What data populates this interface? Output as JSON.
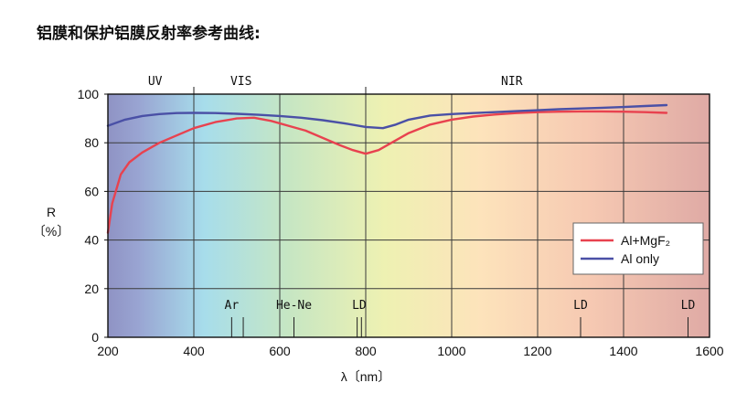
{
  "title": "铝膜和保护铝膜反射率参考曲线:",
  "chart_data": {
    "type": "line",
    "title": "铝膜和保护铝膜反射率参考曲线:",
    "xlabel": "λ〔nm〕",
    "ylabel_line1": "R",
    "ylabel_line2": "〔%〕",
    "xlim": [
      200,
      1600
    ],
    "ylim": [
      0,
      100
    ],
    "xticks": [
      200,
      400,
      600,
      800,
      1000,
      1200,
      1400,
      1600
    ],
    "yticks": [
      0,
      20,
      40,
      60,
      80,
      100
    ],
    "grid": true,
    "regions": [
      {
        "label": "UV",
        "x": 310
      },
      {
        "label": "VIS",
        "x": 510
      },
      {
        "label": "NIR",
        "x": 1140
      }
    ],
    "region_boundaries": [
      400,
      800
    ],
    "markers": [
      {
        "label": "Ar",
        "x": 488,
        "ticks": [
          488,
          515
        ]
      },
      {
        "label": "He-Ne",
        "x": 633,
        "ticks": [
          633
        ]
      },
      {
        "label": "LD",
        "x": 785,
        "ticks": [
          780,
          790
        ]
      },
      {
        "label": "LD",
        "x": 1300,
        "ticks": [
          1300
        ]
      },
      {
        "label": "LD",
        "x": 1550,
        "ticks": [
          1550
        ]
      }
    ],
    "series": [
      {
        "name": "Al+MgF₂",
        "color": "#e8424f",
        "x": [
          200,
          210,
          230,
          250,
          280,
          320,
          360,
          400,
          450,
          500,
          540,
          580,
          620,
          660,
          700,
          740,
          770,
          800,
          830,
          860,
          900,
          950,
          1000,
          1050,
          1100,
          1150,
          1200,
          1250,
          1300,
          1350,
          1400,
          1450,
          1500
        ],
        "y": [
          43,
          55,
          67,
          72,
          76,
          80,
          83,
          86,
          88.5,
          90,
          90.3,
          89,
          87,
          85,
          82,
          79,
          77,
          75.5,
          77,
          80,
          84,
          87.5,
          89.5,
          90.8,
          91.6,
          92.2,
          92.6,
          92.8,
          92.9,
          92.9,
          92.8,
          92.6,
          92.3
        ]
      },
      {
        "name": "Al only",
        "color": "#4a50a6",
        "x": [
          200,
          240,
          280,
          320,
          360,
          400,
          450,
          500,
          550,
          600,
          650,
          700,
          750,
          800,
          840,
          870,
          900,
          950,
          1000,
          1050,
          1100,
          1150,
          1200,
          1250,
          1300,
          1350,
          1400,
          1450,
          1500
        ],
        "y": [
          87,
          89.5,
          91,
          91.8,
          92.2,
          92.3,
          92.2,
          91.9,
          91.5,
          91,
          90.3,
          89.3,
          88,
          86.5,
          86,
          87.5,
          89.5,
          91.2,
          91.8,
          92.2,
          92.6,
          93,
          93.4,
          93.8,
          94.1,
          94.4,
          94.7,
          95.1,
          95.5
        ]
      }
    ],
    "legend": {
      "placement": "middle-right",
      "labels": [
        "Al+MgF₂",
        "Al only"
      ]
    }
  }
}
